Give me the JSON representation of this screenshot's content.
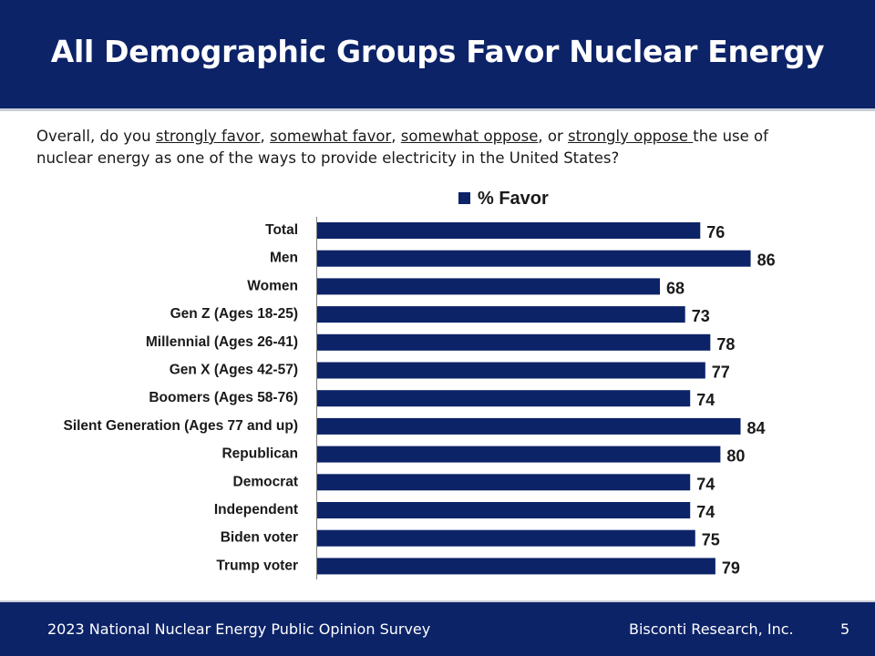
{
  "header": {
    "title": "All Demographic Groups Favor Nuclear Energy"
  },
  "question": {
    "prefix": "Overall, do you ",
    "opt1": "strongly favor",
    "sep1": ", ",
    "opt2": "somewhat favor",
    "sep2": ", ",
    "opt3": "somewhat oppose",
    "sep3": ", or ",
    "opt4": "strongly oppose ",
    "suffix": "the use of nuclear energy as one of the ways to provide electricity in the United States?"
  },
  "chart_data": {
    "type": "bar",
    "orientation": "horizontal",
    "categories": [
      "Total",
      "Men",
      "Women",
      "Gen Z (Ages 18-25)",
      "Millennial (Ages 26-41)",
      "Gen X (Ages 42-57)",
      "Boomers (Ages 58-76)",
      "Silent Generation (Ages 77 and up)",
      "Republican",
      "Democrat",
      "Independent",
      "Biden voter",
      "Trump voter"
    ],
    "series": [
      {
        "name": "% Favor",
        "values": [
          76,
          86,
          68,
          73,
          78,
          77,
          74,
          84,
          80,
          74,
          74,
          75,
          79
        ],
        "color": "#0d2368"
      }
    ],
    "legend": "top-center",
    "data_labels": true,
    "grid": false,
    "xlim": [
      0,
      110
    ]
  },
  "footer": {
    "survey": "2023 National Nuclear Energy Public Opinion Survey",
    "company": "Bisconti Research, Inc.",
    "page": "5"
  },
  "colors": {
    "brand": "#0d2368",
    "bar": "#0d2368",
    "rule": "#c9cdd6"
  }
}
